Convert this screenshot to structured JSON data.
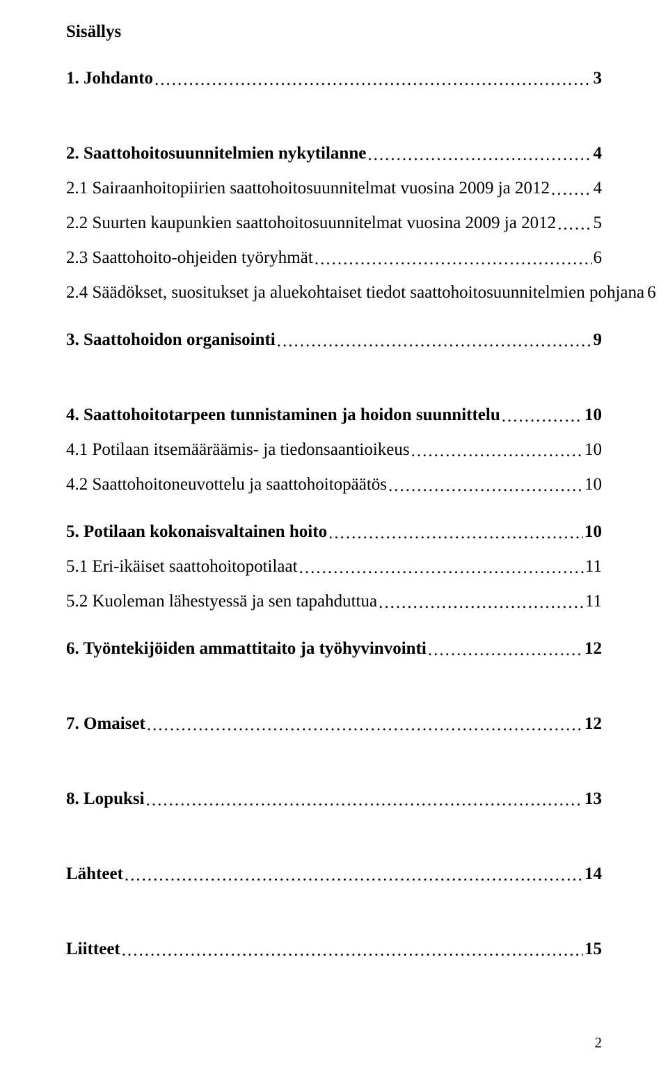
{
  "title": "Sisällys",
  "entries": [
    {
      "label": "1. Johdanto",
      "page": "3",
      "bold": true,
      "gap": "medium"
    },
    {
      "label": "2. Saattohoitosuunnitelmien nykytilanne",
      "page": "4",
      "bold": true,
      "gap": "large"
    },
    {
      "label": "2.1 Sairaanhoitopiirien saattohoitosuunnitelmat vuosina 2009 ja 2012",
      "page": "4",
      "bold": false,
      "gap": "small"
    },
    {
      "label": "2.2 Suurten kaupunkien saattohoitosuunnitelmat vuosina 2009 ja 2012",
      "page": "5",
      "bold": false,
      "gap": "small"
    },
    {
      "label": "2.3 Saattohoito-ohjeiden työryhmät",
      "page": "6",
      "bold": false,
      "gap": "small"
    },
    {
      "label": "2.4 Säädökset, suositukset ja aluekohtaiset tiedot saattohoitosuunnitelmien pohjana",
      "page": "6",
      "bold": false,
      "gap": "small"
    },
    {
      "label": "3. Saattohoidon organisointi",
      "page": "9",
      "bold": true,
      "gap": "medium"
    },
    {
      "label": "4. Saattohoitotarpeen tunnistaminen ja hoidon suunnittelu",
      "page": "10",
      "bold": true,
      "gap": "large"
    },
    {
      "label": "4.1 Potilaan itsemääräämis- ja tiedonsaantioikeus",
      "page": "10",
      "bold": false,
      "gap": "small"
    },
    {
      "label": "4.2 Saattohoitoneuvottelu ja saattohoitopäätös",
      "page": "10",
      "bold": false,
      "gap": "small"
    },
    {
      "label": "5. Potilaan kokonaisvaltainen hoito",
      "page": "10",
      "bold": true,
      "gap": "medium"
    },
    {
      "label": "5.1 Eri-ikäiset saattohoitopotilaat",
      "page": "11",
      "bold": false,
      "gap": "small"
    },
    {
      "label": "5.2 Kuoleman lähestyessä ja sen tapahduttua",
      "page": "11",
      "bold": false,
      "gap": "small"
    },
    {
      "label": "6. Työntekijöiden ammattitaito ja työhyvinvointi",
      "page": "12",
      "bold": true,
      "gap": "medium"
    },
    {
      "label": "7. Omaiset",
      "page": "12",
      "bold": true,
      "gap": "large"
    },
    {
      "label": "8. Lopuksi",
      "page": "13",
      "bold": true,
      "gap": "large"
    },
    {
      "label": "Lähteet",
      "page": "14",
      "bold": true,
      "gap": "large"
    },
    {
      "label": "Liitteet",
      "page": "15",
      "bold": true,
      "gap": "large"
    }
  ],
  "pageNumber": "2",
  "colors": {
    "text": "#000000",
    "background": "#ffffff"
  },
  "typography": {
    "title_fontsize": 25,
    "entry_fontsize": 25,
    "pagenum_fontsize": 21,
    "font_family": "Times New Roman"
  }
}
